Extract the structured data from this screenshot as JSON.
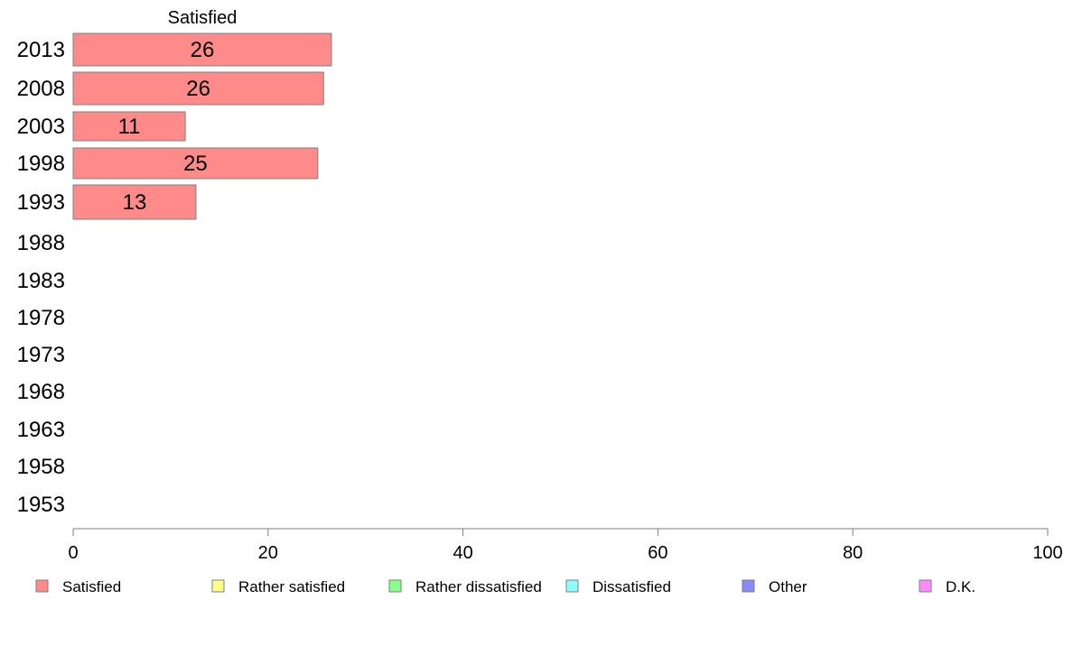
{
  "chart_data": {
    "type": "bar",
    "orientation": "horizontal",
    "stacked": true,
    "categories": [
      "2013",
      "2008",
      "2003",
      "1998",
      "1993",
      "1988",
      "1983",
      "1978",
      "1973",
      "1968",
      "1963",
      "1958",
      "1953"
    ],
    "series": [
      {
        "name": "Satisfied",
        "color": "#ff8a8a",
        "values": [
          26.5,
          25.7,
          11.5,
          25.1,
          12.6,
          null,
          null,
          null,
          null,
          null,
          null,
          null,
          null
        ],
        "labels": [
          "26",
          "26",
          "11",
          "25",
          "13",
          "",
          "",
          "",
          "",
          "",
          "",
          "",
          ""
        ]
      },
      {
        "name": "Rather satisfied",
        "color": "#ffff8a",
        "values": [
          null,
          null,
          null,
          null,
          null,
          null,
          null,
          null,
          null,
          null,
          null,
          null,
          null
        ]
      },
      {
        "name": "Rather dissatisfied",
        "color": "#8aff8a",
        "values": [
          null,
          null,
          null,
          null,
          null,
          null,
          null,
          null,
          null,
          null,
          null,
          null,
          null
        ]
      },
      {
        "name": "Dissatisfied",
        "color": "#8affff",
        "values": [
          null,
          null,
          null,
          null,
          null,
          null,
          null,
          null,
          null,
          null,
          null,
          null,
          null
        ]
      },
      {
        "name": "Other",
        "color": "#8a8aff",
        "values": [
          null,
          null,
          null,
          null,
          null,
          null,
          null,
          null,
          null,
          null,
          null,
          null,
          null
        ]
      },
      {
        "name": "D.K.",
        "color": "#ff8aff",
        "values": [
          null,
          null,
          null,
          null,
          null,
          null,
          null,
          null,
          null,
          null,
          null,
          null,
          null
        ]
      }
    ],
    "column_header": "Satisfied",
    "xlim": [
      0,
      100
    ],
    "xticks": [
      "0",
      "20",
      "40",
      "60",
      "80",
      "100"
    ],
    "grid": false,
    "legend_position": "bottom"
  }
}
